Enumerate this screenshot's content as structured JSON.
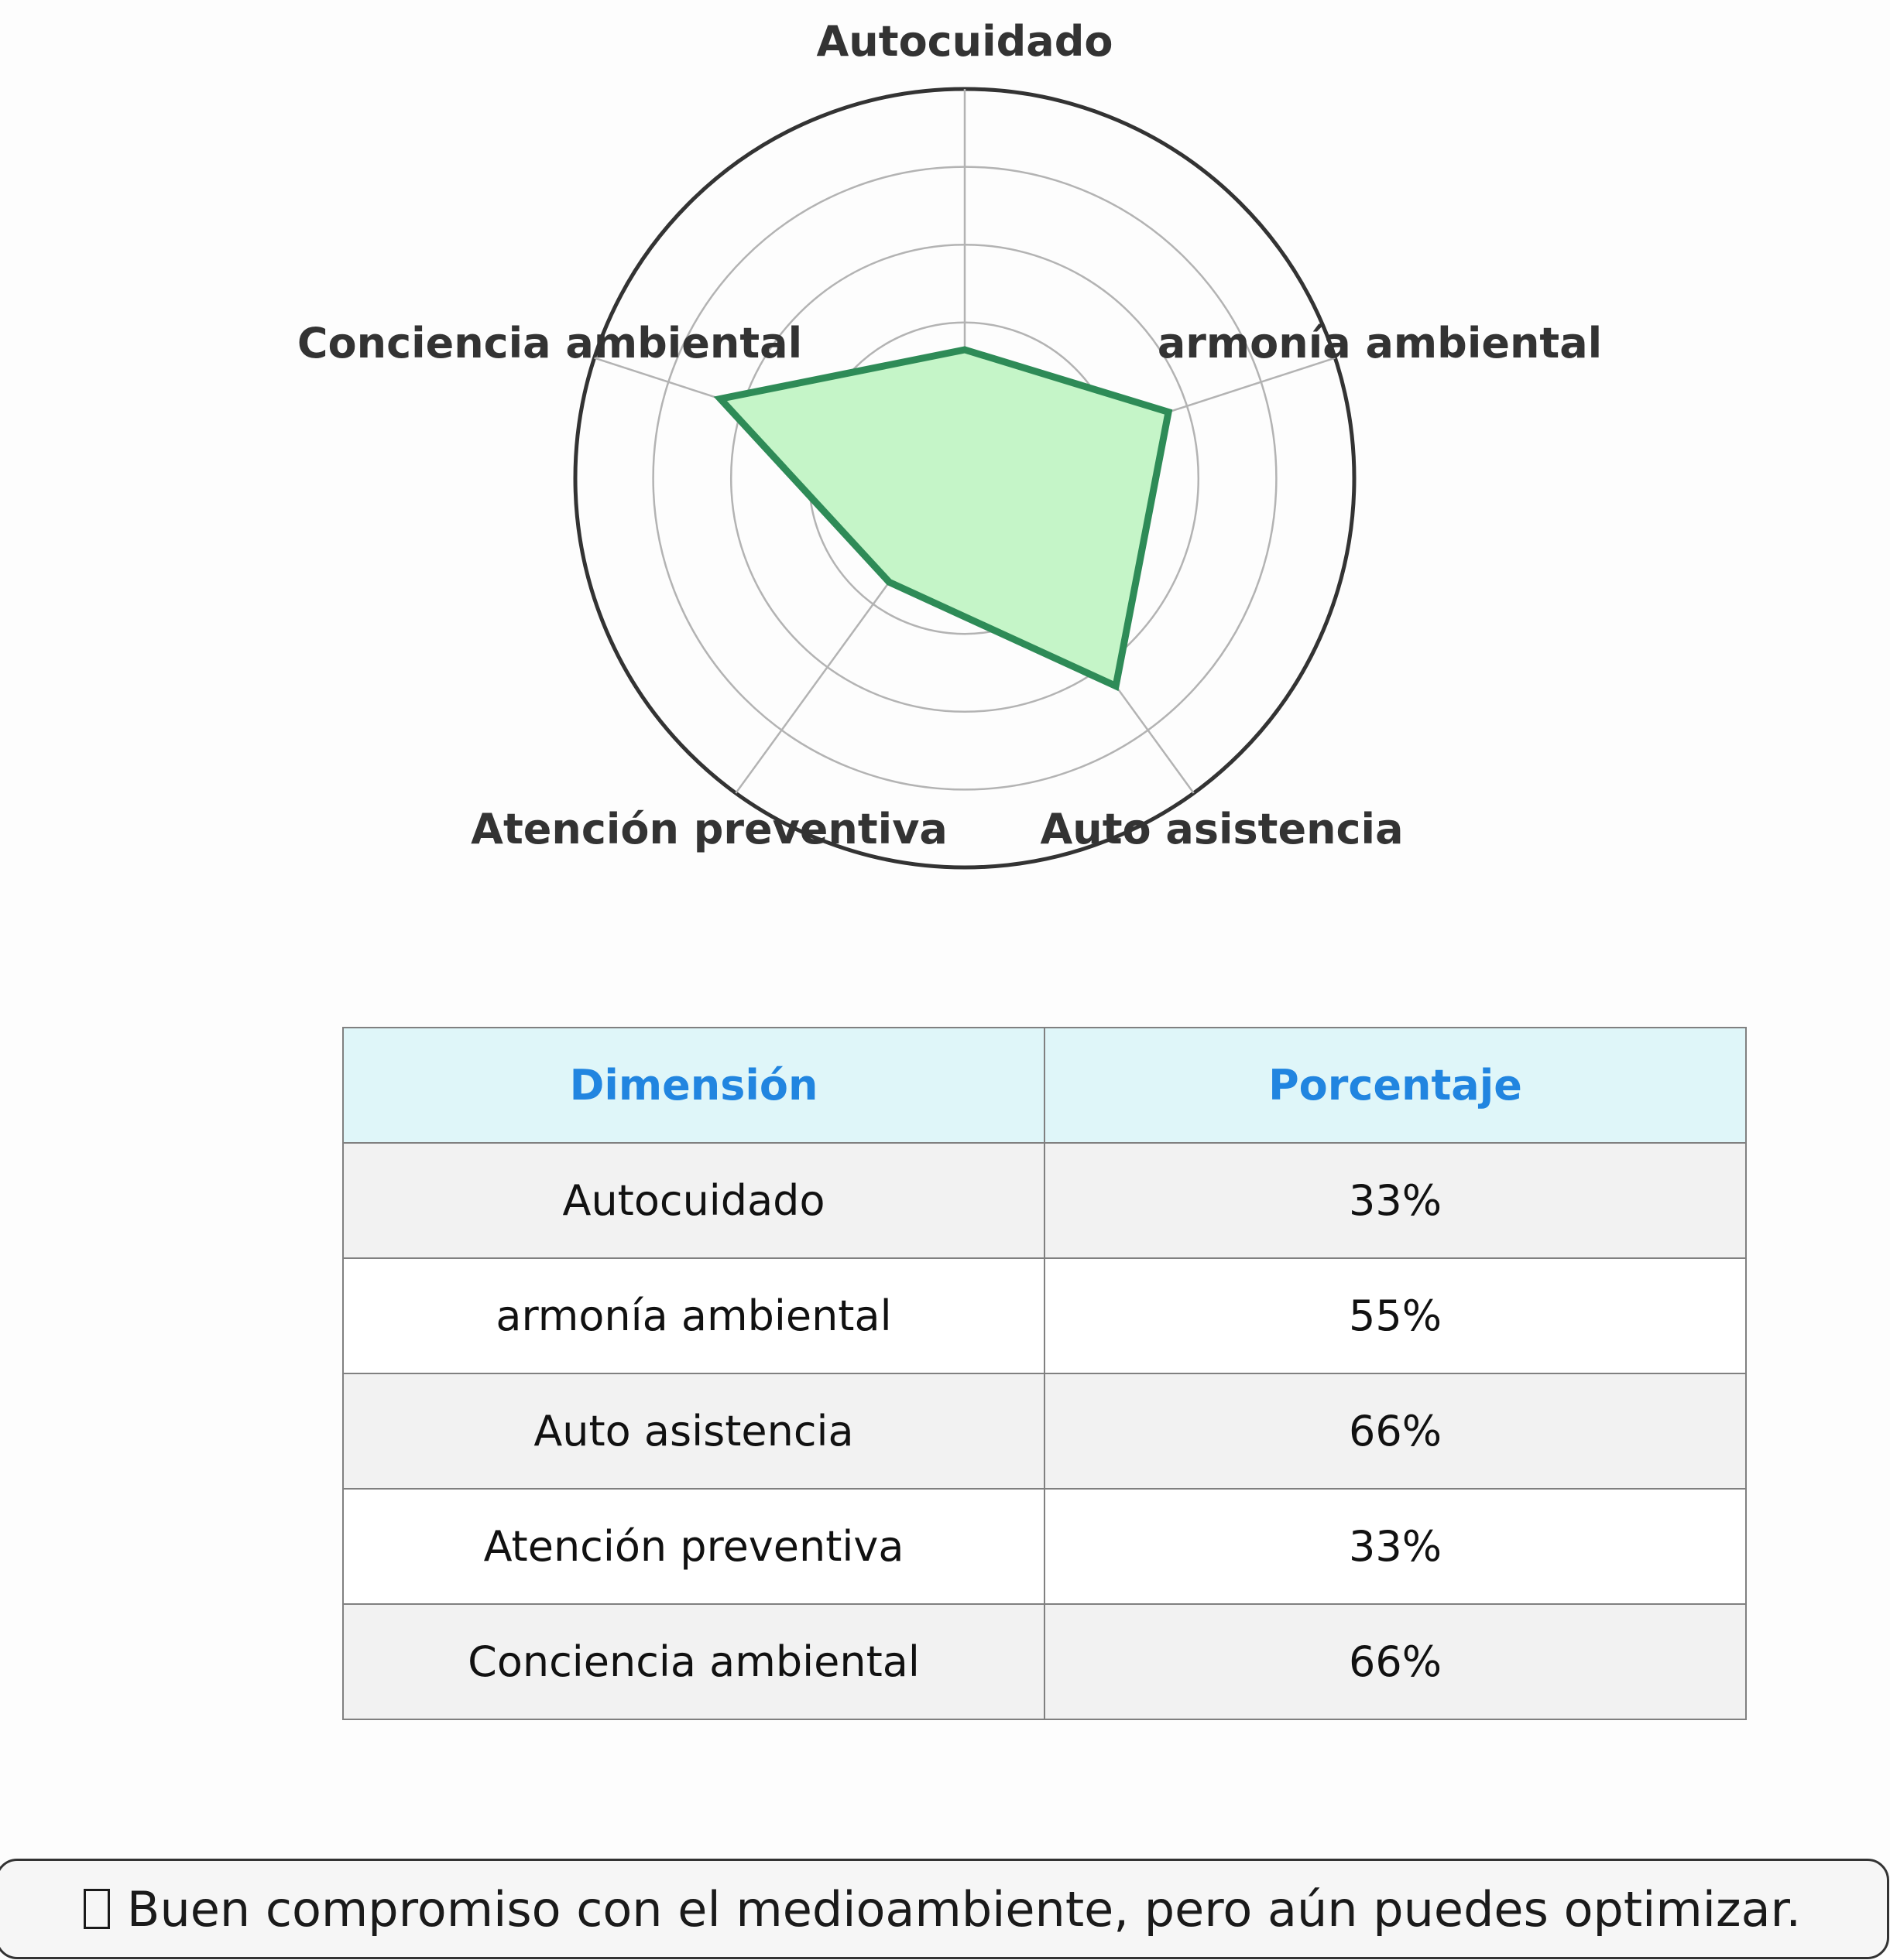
{
  "chart_data": {
    "type": "radar",
    "categories": [
      "Autocuidado",
      "armonía ambiental",
      "Auto asistencia",
      "Atención preventiva",
      "Conciencia ambiental"
    ],
    "series": [
      {
        "values": [
          33,
          55,
          66,
          33,
          66
        ]
      }
    ],
    "rlim": [
      0,
      100
    ],
    "rings": [
      20,
      40,
      60,
      80,
      100
    ],
    "grid": true,
    "colors": {
      "fill": "#c5f5c8",
      "line": "#2e8b57",
      "grid": "#b3b3b3",
      "outer": "#333333"
    }
  },
  "table": {
    "headers": [
      "Dimensión",
      "Porcentaje"
    ],
    "rows": [
      [
        "Autocuidado",
        "33%"
      ],
      [
        "armonía ambiental",
        "55%"
      ],
      [
        "Auto asistencia",
        "66%"
      ],
      [
        "Atención preventiva",
        "33%"
      ],
      [
        "Conciencia ambiental",
        "66%"
      ]
    ]
  },
  "message": {
    "icon": "missing-glyph-icon",
    "text": "Buen compromiso con el medioambiente, pero aún puedes optimizar."
  }
}
